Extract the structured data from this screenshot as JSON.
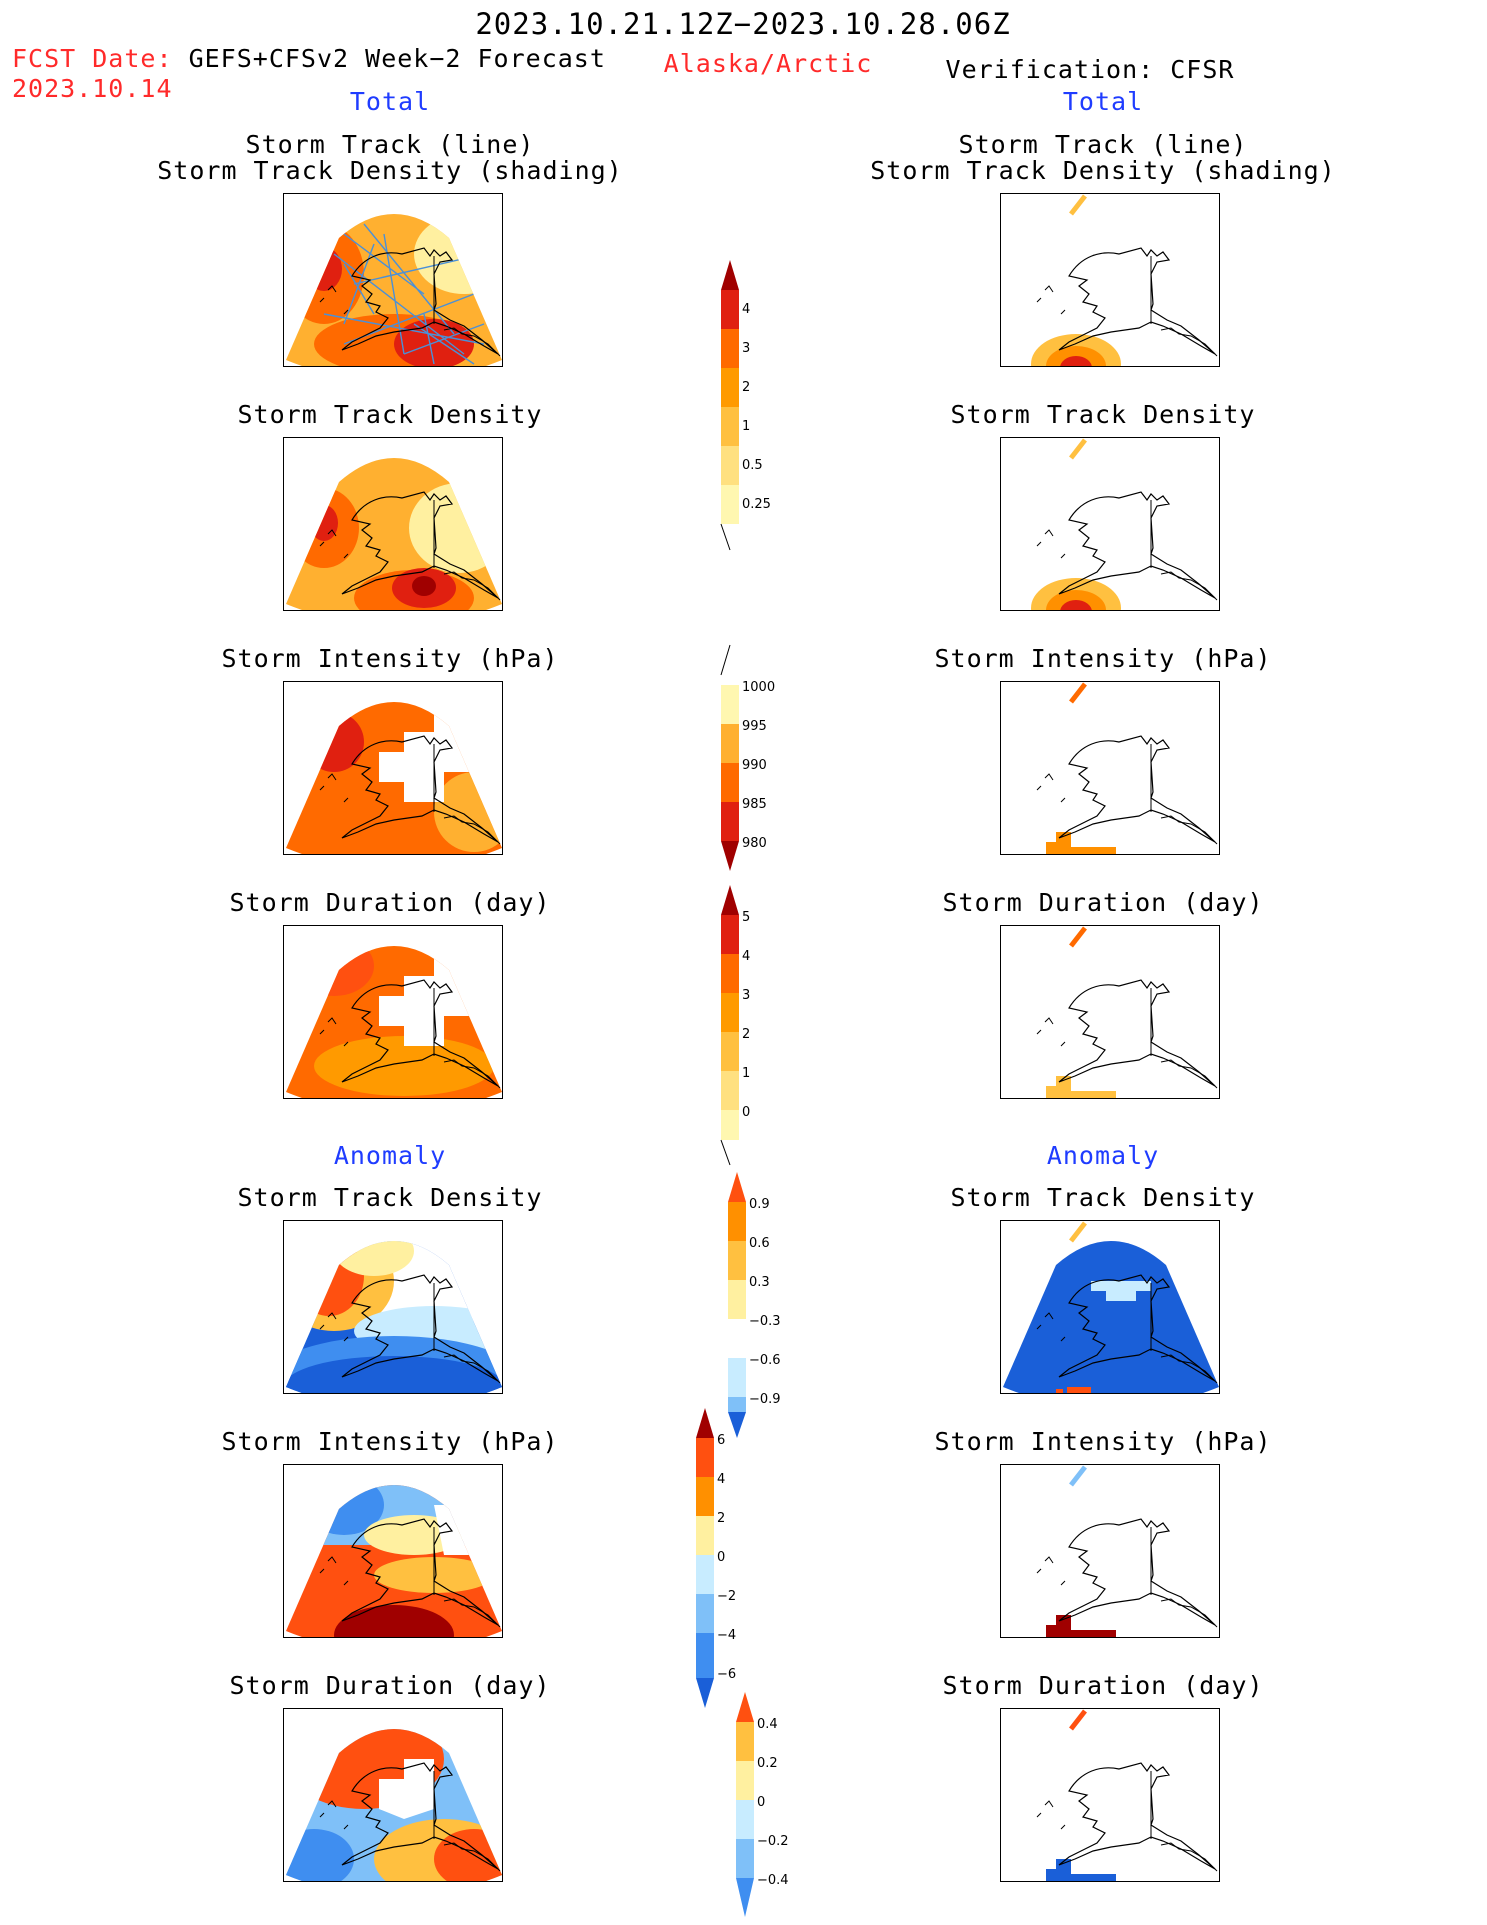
{
  "header": {
    "period": "2023.10.21.12Z−2023.10.28.06Z",
    "fcst_date_label": "FCST Date:",
    "model_label": "GEFS+CFSv2 Week−2 Forecast",
    "fcst_date_value": "2023.10.14",
    "region": "Alaska/Arctic",
    "verification": "Verification: CFSR"
  },
  "sections": {
    "total_left": "Total",
    "total_right": "Total",
    "anomaly_left": "Anomaly",
    "anomaly_right": "Anomaly"
  },
  "panel_titles": {
    "track_line": "Storm Track (line)",
    "track_shading": "Storm Track Density (shading)",
    "density": "Storm Track Density",
    "intensity": "Storm Intensity (hPa)",
    "duration": "Storm Duration (day)"
  },
  "colorbars": {
    "density": [
      "4",
      "3",
      "2",
      "1",
      "0.5",
      "0.25"
    ],
    "intensity": [
      "1000",
      "995",
      "990",
      "985",
      "980"
    ],
    "duration": [
      "5",
      "4",
      "3",
      "2",
      "1",
      "0"
    ],
    "density_anom": [
      "0.9",
      "0.6",
      "0.3",
      "−0.3",
      "−0.6",
      "−0.9"
    ],
    "intensity_anom": [
      "6",
      "4",
      "2",
      "0",
      "−2",
      "−4",
      "−6"
    ],
    "duration_anom": [
      "0.4",
      "0.2",
      "0",
      "−0.2",
      "−0.4"
    ]
  },
  "colors": {
    "title_red": "#ff2a2a",
    "section_blue": "#1f3cff",
    "track_line": "#4a90d8",
    "warm_scale": [
      "#fff7b0",
      "#ffe080",
      "#ffc030",
      "#ff9a00",
      "#ff6a00",
      "#e02010",
      "#a00000"
    ],
    "anom_scale": [
      "#1a5fd8",
      "#3f8ef0",
      "#7fc0f8",
      "#c8ecff",
      "#ffffff",
      "#fff0a0",
      "#ffc040",
      "#ff9000",
      "#ff5010",
      "#a00000"
    ]
  }
}
